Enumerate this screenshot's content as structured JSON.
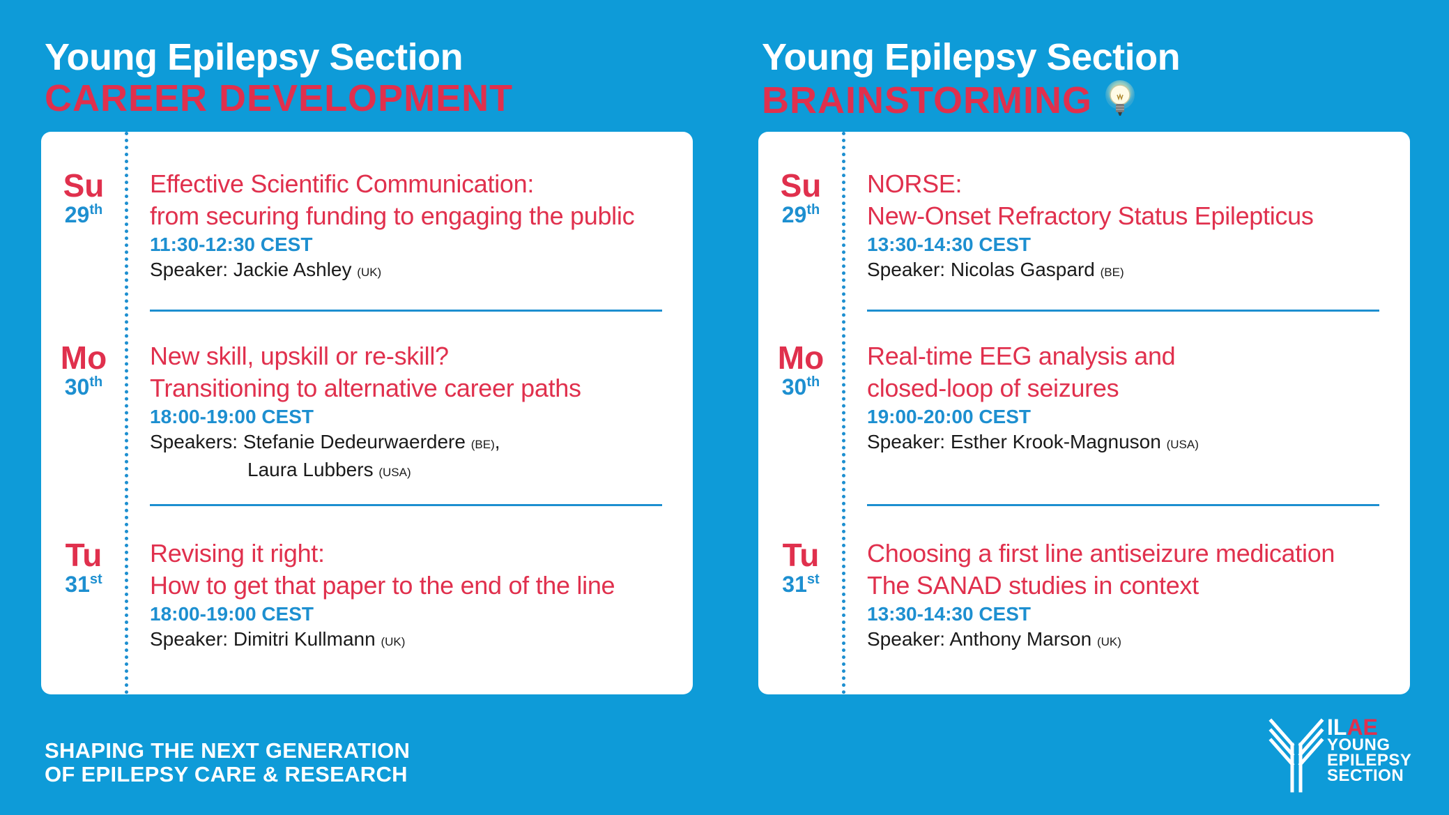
{
  "left": {
    "title": "Young Epilepsy Section",
    "subtitle": "CAREER DEVELOPMENT",
    "sessions": [
      {
        "day": "Su",
        "date": "29",
        "suffix": "th",
        "title1": "Effective Scientific Communication:",
        "title2": "from securing funding to engaging the public",
        "time": "11:30-12:30 CEST",
        "speaker_label": "Speaker:",
        "speaker": "Jackie Ashley",
        "country": "(UK)"
      },
      {
        "day": "Mo",
        "date": "30",
        "suffix": "th",
        "title1": "New skill, upskill or re-skill?",
        "title2": "Transitioning to alternative career paths",
        "time": "18:00-19:00 CEST",
        "speaker_label": "Speakers:",
        "speaker": "Stefanie Dedeurwaerdere",
        "country": "(BE)",
        "speaker_sep": ",",
        "speaker2": "Laura Lubbers",
        "country2": "(USA)"
      },
      {
        "day": "Tu",
        "date": "31",
        "suffix": "st",
        "title1": "Revising it right:",
        "title2": "How to get that paper to the end of the line",
        "time": "18:00-19:00 CEST",
        "speaker_label": "Speaker:",
        "speaker": "Dimitri Kullmann",
        "country": "(UK)"
      }
    ]
  },
  "right": {
    "title": "Young Epilepsy Section",
    "subtitle": "BRAINSTORMING",
    "icon": "lightbulb-icon",
    "sessions": [
      {
        "day": "Su",
        "date": "29",
        "suffix": "th",
        "title1": "NORSE:",
        "title2": "New-Onset Refractory Status Epilepticus",
        "time": "13:30-14:30 CEST",
        "speaker_label": "Speaker:",
        "speaker": "Nicolas Gaspard",
        "country": "(BE)"
      },
      {
        "day": "Mo",
        "date": "30",
        "suffix": "th",
        "title1": "Real-time EEG analysis and",
        "title2": "closed-loop of seizures",
        "time": "19:00-20:00 CEST",
        "speaker_label": "Speaker:",
        "speaker": "Esther Krook-Magnuson",
        "country": "(USA)"
      },
      {
        "day": "Tu",
        "date": "31",
        "suffix": "st",
        "title1": "Choosing a first line antiseizure medication",
        "title2": "The SANAD studies in context",
        "time": "13:30-14:30 CEST",
        "speaker_label": "Speaker:",
        "speaker": "Anthony Marson",
        "country": "(UK)"
      }
    ]
  },
  "footer": {
    "tagline1": "SHAPING THE NEXT GENERATION",
    "tagline2": "OF EPILEPSY CARE & RESEARCH",
    "logo_il": "IL",
    "logo_ae": "AE",
    "logo_line1": "YOUNG",
    "logo_line2": "EPILEPSY",
    "logo_line3": "SECTION"
  },
  "colors": {
    "background": "#0e9bd8",
    "accent_red": "#e0304d",
    "accent_blue": "#1d8fd0",
    "card": "#ffffff"
  }
}
